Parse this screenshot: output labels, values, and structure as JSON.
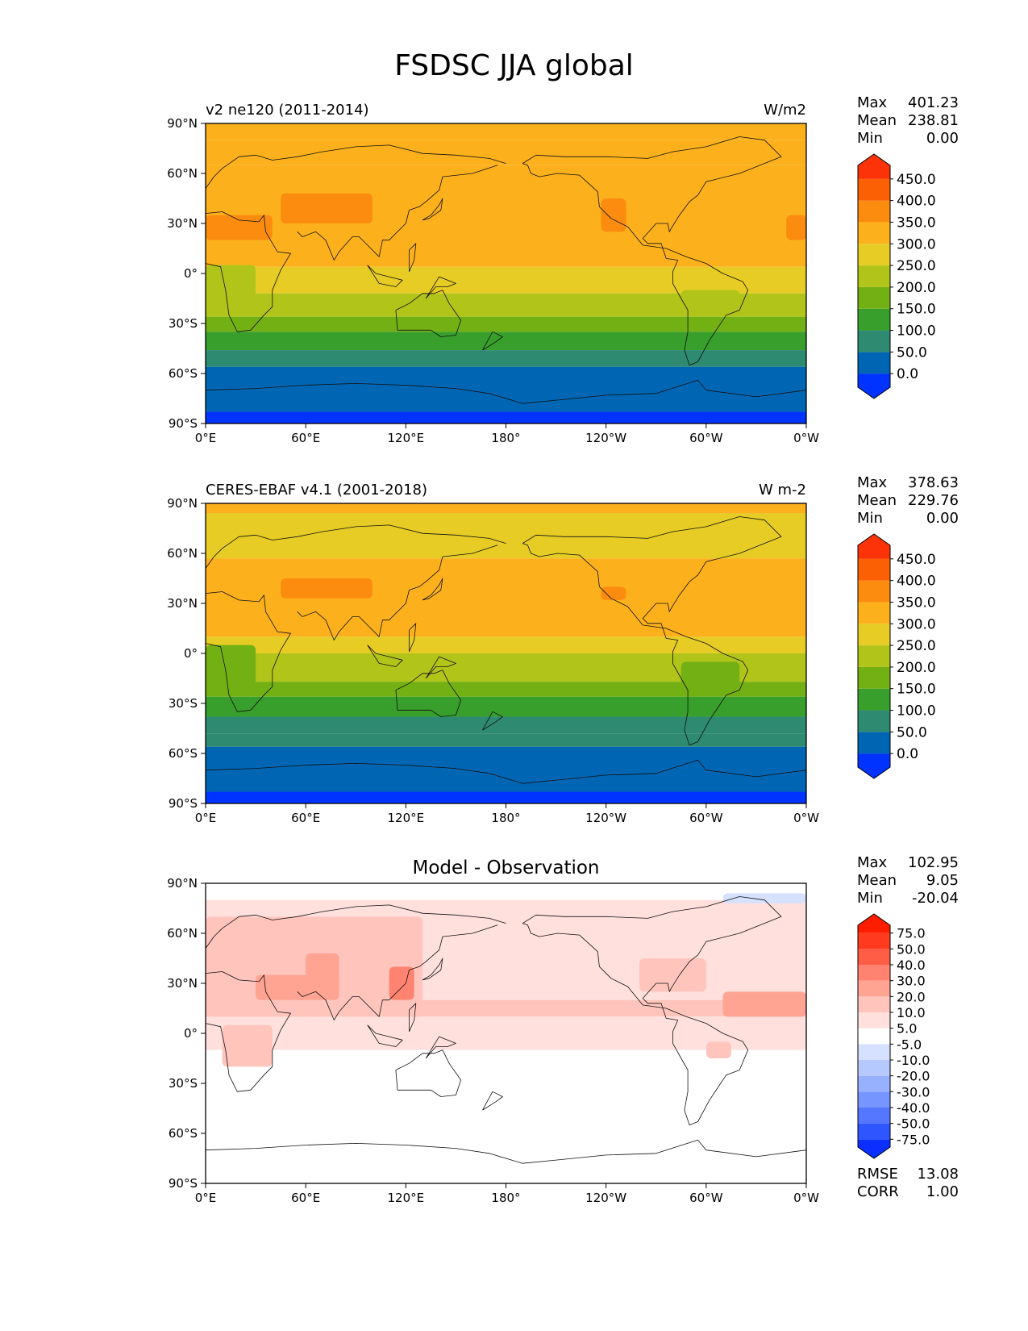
{
  "chart_data": {
    "type": "heatmap",
    "title": "FSDSC JJA global",
    "x_ticks": [
      "0°E",
      "60°E",
      "120°E",
      "180°",
      "120°W",
      "60°W",
      "0°W"
    ],
    "y_ticks": [
      "90°N",
      "60°N",
      "30°N",
      "0°",
      "30°S",
      "60°S",
      "90°S"
    ],
    "panels": [
      {
        "left_title": "v2 ne120 (2011-2014)",
        "center_title": "",
        "units": "W/m2",
        "stats": [
          {
            "label": "Max",
            "value": "401.23"
          },
          {
            "label": "Mean",
            "value": "238.81"
          },
          {
            "label": "Min",
            "value": "0.00"
          }
        ],
        "colorbar": {
          "levels": [
            "0.0",
            "50.0",
            "100.0",
            "150.0",
            "200.0",
            "250.0",
            "300.0",
            "350.0",
            "400.0",
            "450.0"
          ],
          "colors": [
            "#0033ff",
            "#0066b3",
            "#2e8a70",
            "#389f2c",
            "#73b014",
            "#b0c41a",
            "#e6cc24",
            "#fcb11c",
            "#fc8c0f",
            "#fc6005",
            "#fc3309"
          ]
        },
        "bands": [
          {
            "lat": [
              90,
              80
            ],
            "value": 330
          },
          {
            "lat": [
              80,
              65
            ],
            "value": 310
          },
          {
            "lat": [
              65,
              4
            ],
            "value": 330
          },
          {
            "lat": [
              4,
              -12
            ],
            "value": 275
          },
          {
            "lat": [
              -12,
              -26
            ],
            "value": 225
          },
          {
            "lat": [
              -26,
              -35
            ],
            "value": 175
          },
          {
            "lat": [
              -35,
              -46
            ],
            "value": 125
          },
          {
            "lat": [
              -46,
              -56
            ],
            "value": 75
          },
          {
            "lat": [
              -56,
              -83
            ],
            "value": 25
          },
          {
            "lat": [
              -83,
              -90
            ],
            "value": -10
          }
        ],
        "patches": [
          {
            "lon": [
              0,
              40
            ],
            "lat": [
              35,
              20
            ],
            "value": 375
          },
          {
            "lon": [
              45,
              100
            ],
            "lat": [
              48,
              30
            ],
            "value": 375
          },
          {
            "lon": [
              237,
              252
            ],
            "lat": [
              45,
              25
            ],
            "value": 375
          },
          {
            "lon": [
              348,
              360
            ],
            "lat": [
              35,
              20
            ],
            "value": 375
          },
          {
            "lon": [
              0,
              30
            ],
            "lat": [
              5,
              -25
            ],
            "value": 225
          },
          {
            "lon": [
              285,
              320
            ],
            "lat": [
              -10,
              -25
            ],
            "value": 225
          }
        ]
      },
      {
        "left_title": "CERES-EBAF v4.1 (2001-2018)",
        "center_title": "",
        "units": "W m-2",
        "stats": [
          {
            "label": "Max",
            "value": "378.63"
          },
          {
            "label": "Mean",
            "value": "229.76"
          },
          {
            "label": "Min",
            "value": "0.00"
          }
        ],
        "colorbar": {
          "levels": [
            "0.0",
            "50.0",
            "100.0",
            "150.0",
            "200.0",
            "250.0",
            "300.0",
            "350.0",
            "400.0",
            "450.0"
          ],
          "colors": [
            "#0033ff",
            "#0066b3",
            "#2e8a70",
            "#389f2c",
            "#73b014",
            "#b0c41a",
            "#e6cc24",
            "#fcb11c",
            "#fc8c0f",
            "#fc6005",
            "#fc3309"
          ]
        },
        "bands": [
          {
            "lat": [
              90,
              84
            ],
            "value": 330
          },
          {
            "lat": [
              84,
              57
            ],
            "value": 275
          },
          {
            "lat": [
              57,
              10
            ],
            "value": 330
          },
          {
            "lat": [
              10,
              0
            ],
            "value": 275
          },
          {
            "lat": [
              0,
              -17
            ],
            "value": 225
          },
          {
            "lat": [
              -17,
              -26
            ],
            "value": 175
          },
          {
            "lat": [
              -26,
              -38
            ],
            "value": 125
          },
          {
            "lat": [
              -38,
              -48
            ],
            "value": 75
          },
          {
            "lat": [
              -48,
              -56
            ],
            "value": 75
          },
          {
            "lat": [
              -56,
              -83
            ],
            "value": 25
          },
          {
            "lat": [
              -83,
              -90
            ],
            "value": -10
          }
        ],
        "patches": [
          {
            "lon": [
              45,
              100
            ],
            "lat": [
              45,
              33
            ],
            "value": 375
          },
          {
            "lon": [
              237,
              252
            ],
            "lat": [
              40,
              32
            ],
            "value": 375
          },
          {
            "lon": [
              0,
              30
            ],
            "lat": [
              5,
              -25
            ],
            "value": 175
          },
          {
            "lon": [
              285,
              320
            ],
            "lat": [
              -5,
              -25
            ],
            "value": 175
          }
        ]
      },
      {
        "left_title": "",
        "center_title": "Model - Observation",
        "units": "",
        "stats": [
          {
            "label": "Max",
            "value": "102.95"
          },
          {
            "label": "Mean",
            "value": "9.05"
          },
          {
            "label": "Min",
            "value": "-20.04"
          }
        ],
        "extra_stats": [
          {
            "label": "RMSE",
            "value": "13.08"
          },
          {
            "label": "CORR",
            "value": "1.00"
          }
        ],
        "colorbar": {
          "levels": [
            "-75.0",
            "-50.0",
            "-40.0",
            "-30.0",
            "-20.0",
            "-10.0",
            "-5.0",
            "5.0",
            "10.0",
            "20.0",
            "30.0",
            "40.0",
            "50.0",
            "75.0"
          ],
          "colors": [
            "#0a2fff",
            "#2e55ff",
            "#5577ff",
            "#7795ff",
            "#97b1ff",
            "#b6c9ff",
            "#d6e0ff",
            "#ffffff",
            "#ffe0dd",
            "#ffc5bd",
            "#ffa393",
            "#ff8370",
            "#ff5d45",
            "#ff3a1f",
            "#ff1d00"
          ]
        },
        "bands": [
          {
            "lat": [
              90,
              80
            ],
            "value": 0
          },
          {
            "lat": [
              80,
              20
            ],
            "value": 7
          },
          {
            "lat": [
              20,
              10
            ],
            "value": 15
          },
          {
            "lat": [
              10,
              -10
            ],
            "value": 7
          },
          {
            "lat": [
              -10,
              -90
            ],
            "value": 0
          }
        ],
        "patches": [
          {
            "lon": [
              0,
              130
            ],
            "lat": [
              70,
              10
            ],
            "value": 15
          },
          {
            "lon": [
              30,
              80
            ],
            "lat": [
              35,
              20
            ],
            "value": 25
          },
          {
            "lon": [
              60,
              80
            ],
            "lat": [
              48,
              25
            ],
            "value": 25
          },
          {
            "lon": [
              110,
              125
            ],
            "lat": [
              40,
              20
            ],
            "value": 35
          },
          {
            "lon": [
              260,
              300
            ],
            "lat": [
              45,
              25
            ],
            "value": 15
          },
          {
            "lon": [
              310,
              360
            ],
            "lat": [
              25,
              10
            ],
            "value": 25
          },
          {
            "lon": [
              10,
              40
            ],
            "lat": [
              5,
              -20
            ],
            "value": 15
          },
          {
            "lon": [
              300,
              315
            ],
            "lat": [
              -5,
              -15
            ],
            "value": 15
          },
          {
            "lon": [
              310,
              360
            ],
            "lat": [
              84,
              78
            ],
            "value": -7
          }
        ]
      }
    ]
  }
}
